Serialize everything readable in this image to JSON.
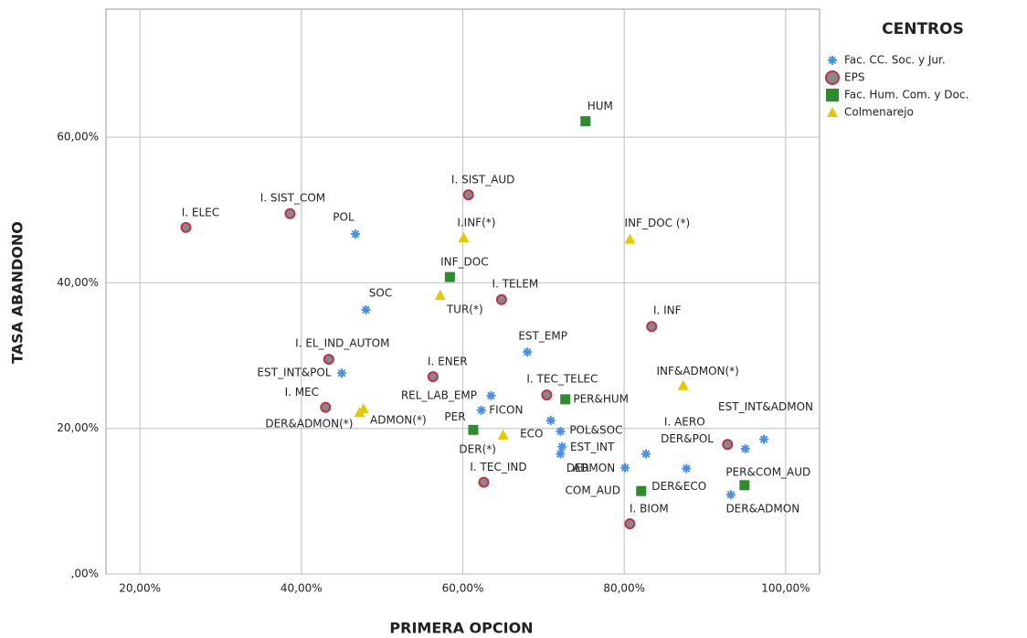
{
  "chart_data": {
    "type": "scatter",
    "xlabel": "PRIMERA OPCION",
    "ylabel": "TASA ABANDONO",
    "legend_title": "CENTROS",
    "legend": "right",
    "grid": true,
    "xlim": [
      15.8,
      104.2
    ],
    "ylim": [
      0,
      77.6
    ],
    "xticks": [
      {
        "value": 20,
        "label": "20,00%"
      },
      {
        "value": 40,
        "label": "40,00%"
      },
      {
        "value": 60,
        "label": "60,00%"
      },
      {
        "value": 80,
        "label": "80,00%"
      },
      {
        "value": 100,
        "label": "100,00%"
      }
    ],
    "yticks": [
      {
        "value": 0,
        "label": ",00%"
      },
      {
        "value": 20,
        "label": "20,00%"
      },
      {
        "value": 40,
        "label": "40,00%"
      },
      {
        "value": 60,
        "label": "60,00%"
      }
    ],
    "series": [
      {
        "name": "Fac. CC. Soc. y Jur.",
        "color": "#4a90e2",
        "marker": "asterisk",
        "labels": [
          "POL",
          "SOC",
          "EST_INT&POL",
          "REL_LAB_EMP",
          "FICON",
          "EST_EMP",
          "ECO",
          "POL&SOC",
          "EST_INT",
          "DER",
          "ADMON",
          "DER&POL",
          "DER&ECO",
          null,
          "EST_INT&ADMON",
          "DER&ADMON"
        ],
        "x": [
          46.7,
          48.0,
          45.0,
          63.5,
          62.3,
          68.0,
          70.9,
          72.1,
          72.3,
          72.1,
          80.1,
          82.7,
          87.7,
          95.0,
          97.3,
          93.2
        ],
        "values": [
          46.7,
          36.3,
          27.6,
          24.5,
          22.5,
          30.5,
          21.1,
          19.6,
          17.5,
          16.5,
          14.6,
          16.5,
          14.5,
          17.2,
          18.5,
          10.9
        ]
      },
      {
        "name": "EPS",
        "color": "#c0304a",
        "marker": "circle",
        "labels": [
          "I. ELEC",
          "I. SIST_COM",
          "I. SIST_AUD",
          "I. TELEM",
          "I. INF",
          "I. EL_IND_AUTOM",
          "I. ENER",
          "I. MEC",
          "I. TEC_TELEC",
          "I. TEC_IND",
          "I. AERO",
          "I. BIOM"
        ],
        "x": [
          25.7,
          38.6,
          60.7,
          64.8,
          83.4,
          43.4,
          56.3,
          43.0,
          70.4,
          62.6,
          92.8,
          80.7
        ],
        "values": [
          47.6,
          49.5,
          52.1,
          37.7,
          34.0,
          29.5,
          27.1,
          22.9,
          24.6,
          12.6,
          17.8,
          6.9
        ]
      },
      {
        "name": "Fac. Hum. Com. y Doc.",
        "color": "#2e8b2e",
        "marker": "square",
        "labels": [
          "HUM",
          "INF_DOC",
          "PER&HUM",
          "PER",
          "COM_AUD",
          "PER&COM_AUD"
        ],
        "x": [
          75.2,
          58.4,
          72.7,
          61.3,
          82.1,
          94.9
        ],
        "values": [
          62.2,
          40.8,
          24.0,
          19.8,
          11.4,
          12.2
        ]
      },
      {
        "name": "Colmenarejo",
        "color": "#e6c800",
        "marker": "triangle",
        "labels": [
          "I.INF(*)",
          "INF_DOC (*)",
          "TUR(*)",
          "INF&ADMON(*)",
          "ADMON(*)",
          "DER&ADMON(*)",
          "DER(*)"
        ],
        "x": [
          60.1,
          80.7,
          57.2,
          87.3,
          47.7,
          47.2,
          65.0
        ],
        "values": [
          46.2,
          46.0,
          38.3,
          25.9,
          22.7,
          22.2,
          19.1
        ]
      }
    ]
  }
}
